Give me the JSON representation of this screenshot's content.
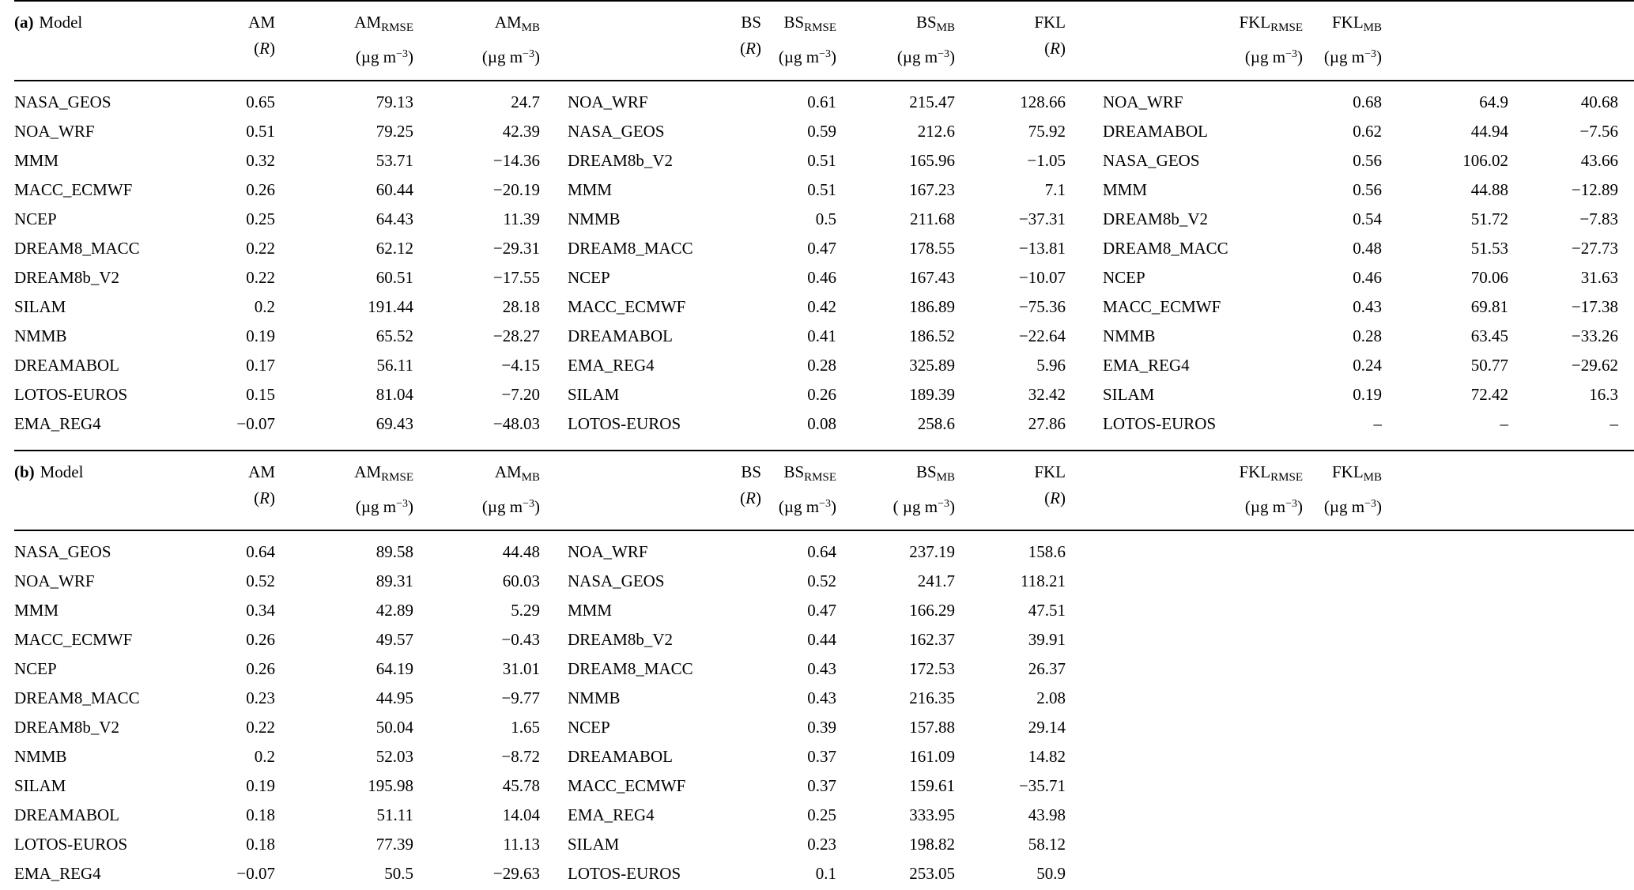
{
  "page": {
    "background_color": "#ffffff",
    "text_color": "#000000"
  },
  "header_labels": {
    "model": "Model",
    "r_open": "(",
    "r_letter": "R",
    "r_close": ")",
    "sub_rmse": "RMSE",
    "sub_mb": "MB",
    "unit_pre": "(µg m",
    "unit_exp": "−3",
    "unit_close": ")",
    "unit_pre_spaced": "( µg m"
  },
  "panels": [
    {
      "id": "a",
      "tag": "(a)",
      "stations": [
        "AM",
        "BS",
        "FKL"
      ],
      "groups": [
        {
          "station": "AM",
          "mb_unit_spaced": false,
          "rows": [
            [
              "NASA_GEOS",
              "0.65",
              "79.13",
              "24.7"
            ],
            [
              "NOA_WRF",
              "0.51",
              "79.25",
              "42.39"
            ],
            [
              "MMM",
              "0.32",
              "53.71",
              "−14.36"
            ],
            [
              "MACC_ECMWF",
              "0.26",
              "60.44",
              "−20.19"
            ],
            [
              "NCEP",
              "0.25",
              "64.43",
              "11.39"
            ],
            [
              "DREAM8_MACC",
              "0.22",
              "62.12",
              "−29.31"
            ],
            [
              "DREAM8b_V2",
              "0.22",
              "60.51",
              "−17.55"
            ],
            [
              "SILAM",
              "0.2",
              "191.44",
              "28.18"
            ],
            [
              "NMMB",
              "0.19",
              "65.52",
              "−28.27"
            ],
            [
              "DREAMABOL",
              "0.17",
              "56.11",
              "−4.15"
            ],
            [
              "LOTOS-EUROS",
              "0.15",
              "81.04",
              "−7.20"
            ],
            [
              "EMA_REG4",
              "−0.07",
              "69.43",
              "−48.03"
            ]
          ]
        },
        {
          "station": "BS",
          "mb_unit_spaced": false,
          "rows": [
            [
              "NOA_WRF",
              "0.61",
              "215.47",
              "128.66"
            ],
            [
              "NASA_GEOS",
              "0.59",
              "212.6",
              "75.92"
            ],
            [
              "DREAM8b_V2",
              "0.51",
              "165.96",
              "−1.05"
            ],
            [
              "MMM",
              "0.51",
              "167.23",
              "7.1"
            ],
            [
              "NMMB",
              "0.5",
              "211.68",
              "−37.31"
            ],
            [
              "DREAM8_MACC",
              "0.47",
              "178.55",
              "−13.81"
            ],
            [
              "NCEP",
              "0.46",
              "167.43",
              "−10.07"
            ],
            [
              "MACC_ECMWF",
              "0.42",
              "186.89",
              "−75.36"
            ],
            [
              "DREAMABOL",
              "0.41",
              "186.52",
              "−22.64"
            ],
            [
              "EMA_REG4",
              "0.28",
              "325.89",
              "5.96"
            ],
            [
              "SILAM",
              "0.26",
              "189.39",
              "32.42"
            ],
            [
              "LOTOS-EUROS",
              "0.08",
              "258.6",
              "27.86"
            ]
          ]
        },
        {
          "station": "FKL",
          "mb_unit_spaced": false,
          "rows": [
            [
              "NOA_WRF",
              "0.68",
              "64.9",
              "40.68"
            ],
            [
              "DREAMABOL",
              "0.62",
              "44.94",
              "−7.56"
            ],
            [
              "NASA_GEOS",
              "0.56",
              "106.02",
              "43.66"
            ],
            [
              "MMM",
              "0.56",
              "44.88",
              "−12.89"
            ],
            [
              "DREAM8b_V2",
              "0.54",
              "51.72",
              "−7.83"
            ],
            [
              "DREAM8_MACC",
              "0.48",
              "51.53",
              "−27.73"
            ],
            [
              "NCEP",
              "0.46",
              "70.06",
              "31.63"
            ],
            [
              "MACC_ECMWF",
              "0.43",
              "69.81",
              "−17.38"
            ],
            [
              "NMMB",
              "0.28",
              "63.45",
              "−33.26"
            ],
            [
              "EMA_REG4",
              "0.24",
              "50.77",
              "−29.62"
            ],
            [
              "SILAM",
              "0.19",
              "72.42",
              "16.3"
            ],
            [
              "LOTOS-EUROS",
              "–",
              "–",
              "–"
            ]
          ]
        }
      ]
    },
    {
      "id": "b",
      "tag": "(b)",
      "stations": [
        "AM",
        "BS",
        "FKL"
      ],
      "groups": [
        {
          "station": "AM",
          "mb_unit_spaced": false,
          "rows": [
            [
              "NASA_GEOS",
              "0.64",
              "89.58",
              "44.48"
            ],
            [
              "NOA_WRF",
              "0.52",
              "89.31",
              "60.03"
            ],
            [
              "MMM",
              "0.34",
              "42.89",
              "5.29"
            ],
            [
              "MACC_ECMWF",
              "0.26",
              "49.57",
              "−0.43"
            ],
            [
              "NCEP",
              "0.26",
              "64.19",
              "31.01"
            ],
            [
              "DREAM8_MACC",
              "0.23",
              "44.95",
              "−9.77"
            ],
            [
              "DREAM8b_V2",
              "0.22",
              "50.04",
              "1.65"
            ],
            [
              "NMMB",
              "0.2",
              "52.03",
              "−8.72"
            ],
            [
              "SILAM",
              "0.19",
              "195.98",
              "45.78"
            ],
            [
              "DREAMABOL",
              "0.18",
              "51.11",
              "14.04"
            ],
            [
              "LOTOS-EUROS",
              "0.18",
              "77.39",
              "11.13"
            ],
            [
              "EMA_REG4",
              "−0.07",
              "50.5",
              "−29.63"
            ]
          ]
        },
        {
          "station": "BS",
          "mb_unit_spaced": true,
          "rows": [
            [
              "NOA_WRF",
              "0.64",
              "237.19",
              "158.6"
            ],
            [
              "NASA_GEOS",
              "0.52",
              "241.7",
              "118.21"
            ],
            [
              "MMM",
              "0.47",
              "166.29",
              "47.51"
            ],
            [
              "DREAM8b_V2",
              "0.44",
              "162.37",
              "39.91"
            ],
            [
              "DREAM8_MACC",
              "0.43",
              "172.53",
              "26.37"
            ],
            [
              "NMMB",
              "0.43",
              "216.35",
              "2.08"
            ],
            [
              "NCEP",
              "0.39",
              "157.88",
              "29.14"
            ],
            [
              "DREAMABOL",
              "0.37",
              "161.09",
              "14.82"
            ],
            [
              "MACC_ECMWF",
              "0.37",
              "159.61",
              "−35.71"
            ],
            [
              "EMA_REG4",
              "0.25",
              "333.95",
              "43.98"
            ],
            [
              "SILAM",
              "0.23",
              "198.82",
              "58.12"
            ],
            [
              "LOTOS-EUROS",
              "0.1",
              "253.05",
              "50.9"
            ]
          ]
        },
        {
          "station": "FKL",
          "mb_unit_spaced": false,
          "rows": []
        }
      ]
    }
  ]
}
